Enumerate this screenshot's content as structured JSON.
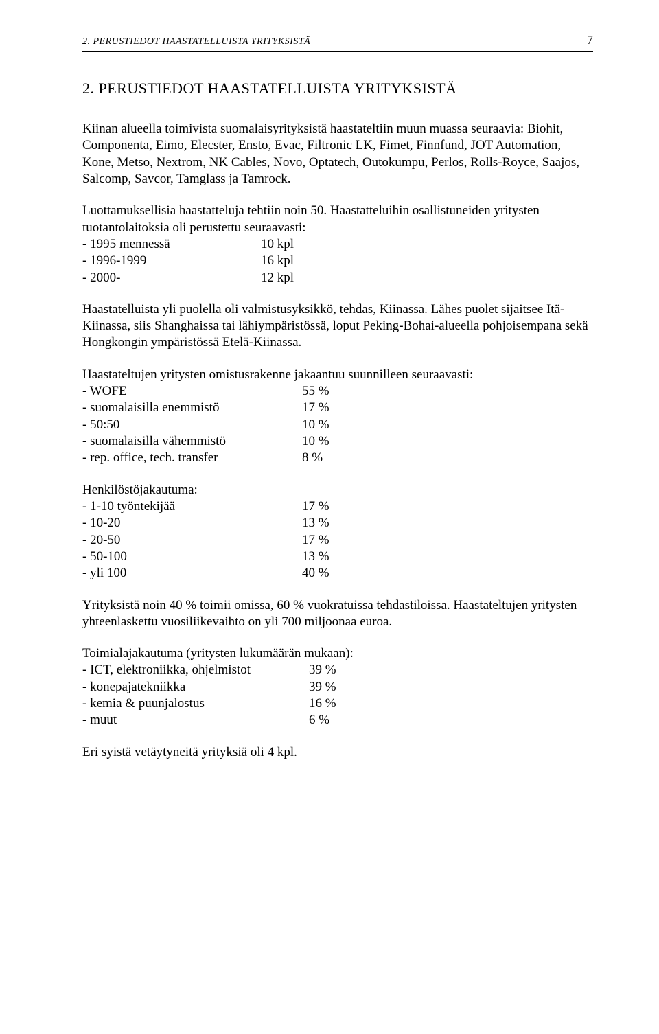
{
  "header": {
    "running_title": "2. PERUSTIEDOT HAASTATELLUISTA YRITYKSISTÄ",
    "page_number": "7"
  },
  "title": "2. PERUSTIEDOT HAASTATELLUISTA YRITYKSISTÄ",
  "para1": "Kiinan alueella toimivista suomalaisyrityksistä haastateltiin muun muassa seuraavia: Biohit, Componenta, Eimo, Elecster, Ensto, Evac, Filtronic LK, Fimet, Finnfund, JOT Automation, Kone, Metso, Nextrom, NK Cables, Novo, Optatech, Outokumpu, Perlos, Rolls-Royce, Saajos, Salcomp, Savcor, Tamglass ja Tamrock.",
  "para2_lead": "Luottamuksellisia haastatteluja tehtiin noin 50. Haastatteluihin osallistuneiden yritysten tuotantolaitoksia oli perustettu seuraavasti:",
  "founded": [
    {
      "label": "- 1995 mennessä",
      "value": "10 kpl"
    },
    {
      "label": "- 1996-1999",
      "value": "16 kpl"
    },
    {
      "label": "- 2000-",
      "value": "12 kpl"
    }
  ],
  "para3": "Haastatelluista yli puolella oli valmistusyksikkö, tehdas, Kiinassa. Lähes puolet sijaitsee Itä-Kiinassa, siis Shanghaissa tai lähiympäristössä, loput Peking-Bohai-alueella pohjoisempana sekä Hongkongin ympäristössä Etelä-Kiinassa.",
  "ownership_lead": "Haastateltujen yritysten omistusrakenne jakaantuu suunnilleen seuraavasti:",
  "ownership": [
    {
      "label": "- WOFE",
      "value": "55 %"
    },
    {
      "label": "- suomalaisilla enemmistö",
      "value": "17 %"
    },
    {
      "label": "- 50:50",
      "value": "10 %"
    },
    {
      "label": "- suomalaisilla vähemmistö",
      "value": "10 %"
    },
    {
      "label": "- rep. office, tech. transfer",
      "value": "8 %"
    }
  ],
  "staff_lead": "Henkilöstöjakautuma:",
  "staff": [
    {
      "label": "-  1-10 työntekijää",
      "value": "17 %"
    },
    {
      "label": "-  10-20",
      "value": "13 %"
    },
    {
      "label": "-  20-50",
      "value": "17 %"
    },
    {
      "label": "-  50-100",
      "value": "13 %"
    },
    {
      "label": "-  yli 100",
      "value": "40 %"
    }
  ],
  "para4": "Yrityksistä noin 40 % toimii omissa, 60 % vuokratuissa tehdastiloissa. Haastateltujen yritysten yhteenlaskettu vuosiliikevaihto on yli 700 miljoonaa euroa.",
  "sector_lead": "Toimialajakautuma (yritysten lukumäärän mukaan):",
  "sector": [
    {
      "label": "- ICT, elektroniikka, ohjelmistot",
      "value": "39 %"
    },
    {
      "label": "- konepajatekniikka",
      "value": "39 %"
    },
    {
      "label": "- kemia & puunjalostus",
      "value": "16 %"
    },
    {
      "label": "- muut",
      "value": "6 %"
    }
  ],
  "para5": "Eri syistä vetäytyneitä yrityksiä oli 4 kpl."
}
